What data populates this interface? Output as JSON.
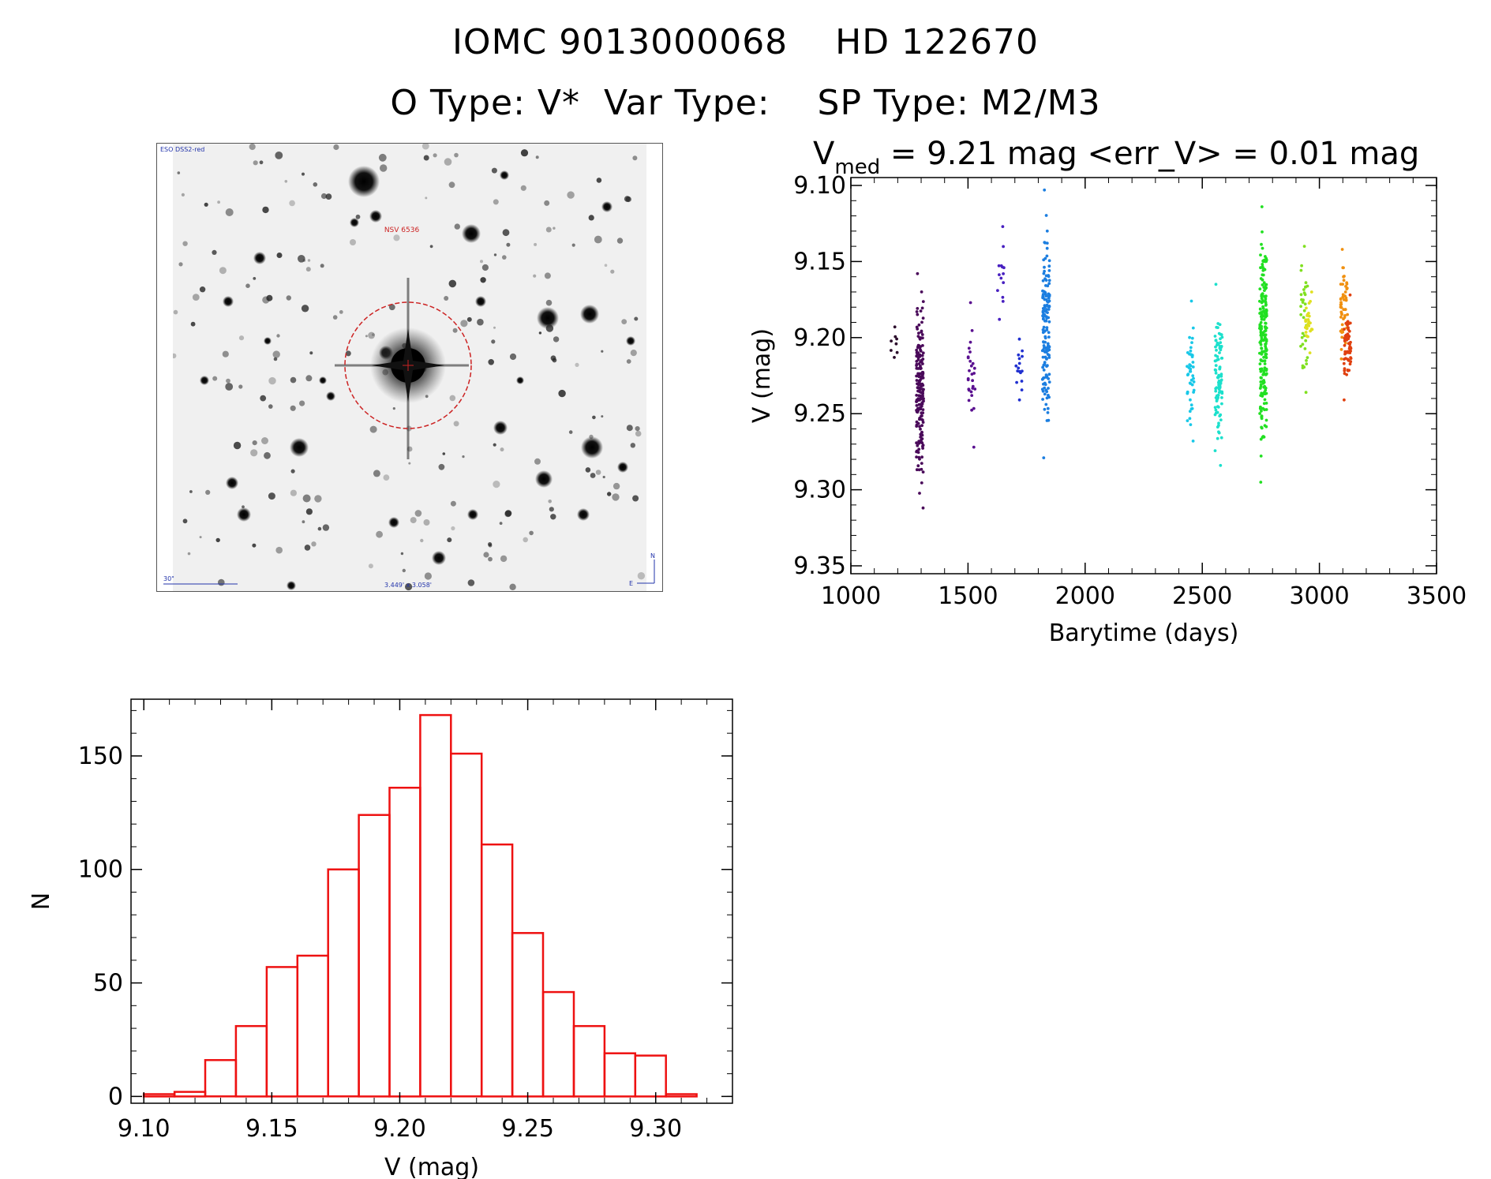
{
  "header": {
    "line1": "IOMC 9013000068    HD 122670",
    "line2": "O Type: V*  Var Type:    SP Type: M2/M3"
  },
  "image_panel": {
    "survey_label": "ESO DSS2-red",
    "object_label": "NSV 6536",
    "scale_label": "30\"",
    "field_label": "3.449' x 3.058'",
    "north_label": "N",
    "east_label": "E",
    "circle_color": "#cc2222"
  },
  "chart_data": [
    {
      "type": "scatter",
      "title_prefix": "V",
      "title_sub": "med",
      "title_rest": " = 9.21 mag <err_V> = 0.01 mag",
      "xlabel": "Barytime (days)",
      "ylabel": "V (mag)",
      "xlim": [
        1000,
        3500
      ],
      "ylim": [
        9.35,
        9.1
      ],
      "xticks": [
        "1000",
        "1500",
        "2000",
        "2500",
        "3000",
        "3500"
      ],
      "yticks": [
        "9.10",
        "9.15",
        "9.20",
        "9.25",
        "9.30",
        "9.35"
      ],
      "groups": [
        {
          "x": 1185,
          "ymin": 9.193,
          "ymax": 9.213,
          "n": 8,
          "color": "#2b0b2b"
        },
        {
          "x": 1295,
          "ymin": 9.158,
          "ymax": 9.312,
          "n": 190,
          "color": "#4a0a5a"
        },
        {
          "x": 1515,
          "ymin": 9.177,
          "ymax": 9.272,
          "n": 28,
          "color": "#5a1090"
        },
        {
          "x": 1640,
          "ymin": 9.127,
          "ymax": 9.188,
          "n": 14,
          "color": "#4820c0"
        },
        {
          "x": 1720,
          "ymin": 9.201,
          "ymax": 9.241,
          "n": 16,
          "color": "#2030d0"
        },
        {
          "x": 1833,
          "ymin": 9.103,
          "ymax": 9.279,
          "n": 150,
          "color": "#1c7ee0"
        },
        {
          "x": 2450,
          "ymin": 9.176,
          "ymax": 9.268,
          "n": 45,
          "color": "#18c8e8"
        },
        {
          "x": 2570,
          "ymin": 9.165,
          "ymax": 9.284,
          "n": 95,
          "color": "#1ce0cc"
        },
        {
          "x": 2760,
          "ymin": 9.114,
          "ymax": 9.295,
          "n": 210,
          "color": "#22e022"
        },
        {
          "x": 2935,
          "ymin": 9.14,
          "ymax": 9.236,
          "n": 35,
          "color": "#80e020"
        },
        {
          "x": 2955,
          "ymin": 9.17,
          "ymax": 9.21,
          "n": 30,
          "color": "#e0e020"
        },
        {
          "x": 3105,
          "ymin": 9.142,
          "ymax": 9.214,
          "n": 50,
          "color": "#f09010"
        },
        {
          "x": 3120,
          "ymin": 9.172,
          "ymax": 9.241,
          "n": 60,
          "color": "#e04010"
        }
      ]
    },
    {
      "type": "bar",
      "xlabel": "V (mag)",
      "ylabel": "N",
      "xlim": [
        9.095,
        9.33
      ],
      "ylim": [
        -3,
        175
      ],
      "xticks": [
        "9.10",
        "9.15",
        "9.20",
        "9.25",
        "9.30"
      ],
      "yticks": [
        "0",
        "50",
        "100",
        "150"
      ],
      "bin_start": 9.1,
      "bin_width": 0.012,
      "values": [
        1,
        2,
        16,
        31,
        57,
        62,
        100,
        124,
        136,
        168,
        151,
        111,
        72,
        46,
        31,
        19,
        18,
        1
      ],
      "bar_color": "#ee1111"
    }
  ]
}
